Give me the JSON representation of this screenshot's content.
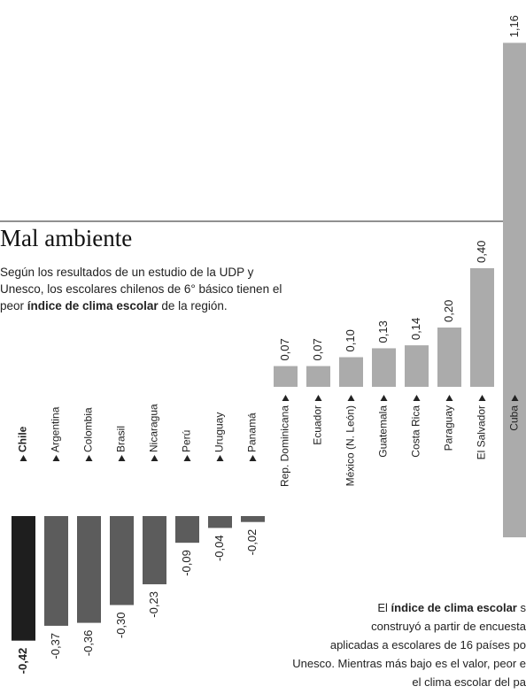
{
  "chart_data": {
    "type": "bar",
    "title": "Mal ambiente",
    "subtitle": [
      "Según los resultados de un estudio de la UDP y Unesco, los escolares chilenos de 6° básico tienen el peor ",
      "índice de clima escolar",
      " de la región."
    ],
    "note": [
      [
        "El ",
        "índice de clima escolar",
        " s"
      ],
      [
        "construyó a partir de encuesta"
      ],
      [
        "aplicadas a escolares de 16 países po"
      ],
      [
        "Unesco. Mientras más bajo es el valor, peor e"
      ],
      [
        "el clima escolar del pa"
      ]
    ],
    "categories": [
      "Chile",
      "Argentina",
      "Colombia",
      "Brasil",
      "Nicaragua",
      "Perú",
      "Uruguay",
      "Panamá",
      "Rep. Dominicana",
      "Ecuador",
      "México (N. León)",
      "Guatemala",
      "Costa Rica",
      "Paraguay",
      "El Salvador",
      "Cuba"
    ],
    "values": [
      -0.42,
      -0.37,
      -0.36,
      -0.3,
      -0.23,
      -0.09,
      -0.04,
      -0.02,
      0.07,
      0.07,
      0.1,
      0.13,
      0.14,
      0.2,
      0.4,
      1.16
    ],
    "value_labels": [
      "-0,42",
      "-0,37",
      "-0,36",
      "-0,30",
      "-0,23",
      "-0,09",
      "-0,04",
      "-0,02",
      "0,07",
      "0,07",
      "0,10",
      "0,13",
      "0,14",
      "0,20",
      "0,40",
      "1,16"
    ],
    "colors": [
      "#1e1e1e",
      "#5c5c5c",
      "#5c5c5c",
      "#5c5c5c",
      "#5c5c5c",
      "#5c5c5c",
      "#5c5c5c",
      "#5c5c5c",
      "#ababab",
      "#ababab",
      "#ababab",
      "#ababab",
      "#ababab",
      "#ababab",
      "#ababab",
      "#ababab"
    ]
  }
}
